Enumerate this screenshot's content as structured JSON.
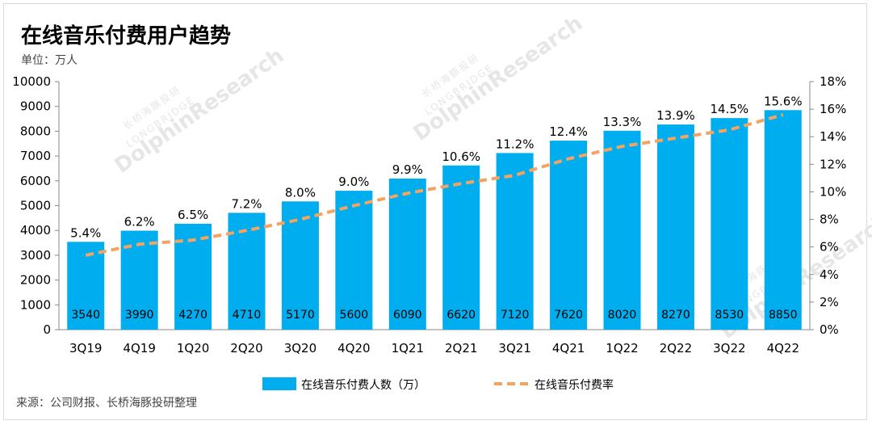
{
  "title": "在线音乐付费用户趋势",
  "unit": "单位：万人",
  "source": "来源：公司财报、长桥海豚投研整理",
  "watermark": {
    "brand": "DolphinResearch",
    "sub": "长桥海豚投研",
    "sub2": "LONGBRIDGE"
  },
  "colors": {
    "bar": "#00aeef",
    "line": "#f4a460"
  },
  "chart_data": {
    "type": "bar",
    "categories": [
      "3Q19",
      "4Q19",
      "1Q20",
      "2Q20",
      "3Q20",
      "4Q20",
      "1Q21",
      "2Q21",
      "3Q21",
      "4Q21",
      "1Q22",
      "2Q22",
      "3Q22",
      "4Q22"
    ],
    "series": [
      {
        "name": "在线音乐付费人数（万）",
        "type": "bar",
        "axis": "left",
        "values": [
          3540,
          3990,
          4270,
          4710,
          5170,
          5600,
          6090,
          6620,
          7120,
          7620,
          8020,
          8270,
          8530,
          8850
        ]
      },
      {
        "name": "在线音乐付费率",
        "type": "line",
        "axis": "right",
        "style": "dashed",
        "values": [
          5.4,
          6.2,
          6.5,
          7.2,
          8.0,
          9.0,
          9.9,
          10.6,
          11.2,
          12.4,
          13.3,
          13.9,
          14.5,
          15.6
        ],
        "labels": [
          "5.4%",
          "6.2%",
          "6.5%",
          "7.2%",
          "8.0%",
          "9.0%",
          "9.9%",
          "10.6%",
          "11.2%",
          "12.4%",
          "13.3%",
          "13.9%",
          "14.5%",
          "15.6%"
        ]
      }
    ],
    "ylim_left": [
      0,
      10000
    ],
    "yticks_left": [
      "0",
      "1000",
      "2000",
      "3000",
      "4000",
      "5000",
      "6000",
      "7000",
      "8000",
      "9000",
      "10000"
    ],
    "ylim_right": [
      0,
      18
    ],
    "yticks_right": [
      "0%",
      "2%",
      "4%",
      "6%",
      "8%",
      "10%",
      "12%",
      "14%",
      "16%",
      "18%"
    ],
    "legend_position": "bottom"
  }
}
